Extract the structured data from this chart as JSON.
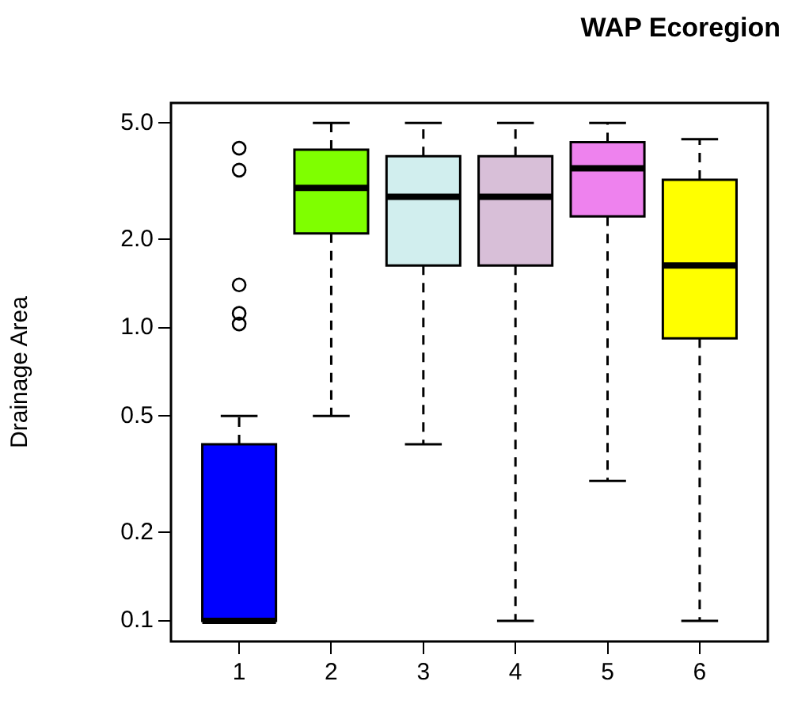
{
  "chart_data": {
    "type": "box",
    "title": "WAP Ecoregion",
    "ylabel": "Drainage Area",
    "categories": [
      "1",
      "2",
      "3",
      "4",
      "5",
      "6"
    ],
    "colors": [
      "#0000ff",
      "#7fff00",
      "#d1eeee",
      "#d8bfd8",
      "#ee82ee",
      "#ffff00"
    ],
    "boxes": [
      {
        "low": 0.1,
        "q1": 0.1,
        "median": 0.1,
        "q3": 0.4,
        "high": 0.5,
        "outliers": [
          4.1,
          3.45,
          1.4,
          1.12,
          1.03
        ]
      },
      {
        "low": 0.5,
        "q1": 2.1,
        "median": 3.0,
        "q3": 4.05,
        "high": 5.0
      },
      {
        "low": 0.4,
        "q1": 1.63,
        "median": 2.8,
        "q3": 3.85,
        "high": 5.0
      },
      {
        "low": 0.1,
        "q1": 1.63,
        "median": 2.8,
        "q3": 3.85,
        "high": 5.0
      },
      {
        "low": 0.3,
        "q1": 2.4,
        "median": 3.5,
        "q3": 4.3,
        "high": 5.0
      },
      {
        "low": 0.1,
        "q1": 0.92,
        "median": 1.63,
        "q3": 3.2,
        "high": 4.4
      }
    ],
    "log": true,
    "ylim": [
      0.085,
      5.85
    ],
    "yticks": [
      0.1,
      0.2,
      0.5,
      {
        "value": 1,
        "label": "1.0"
      },
      {
        "value": 2,
        "label": "2.0"
      },
      {
        "value": 5,
        "label": "5.0"
      }
    ]
  }
}
